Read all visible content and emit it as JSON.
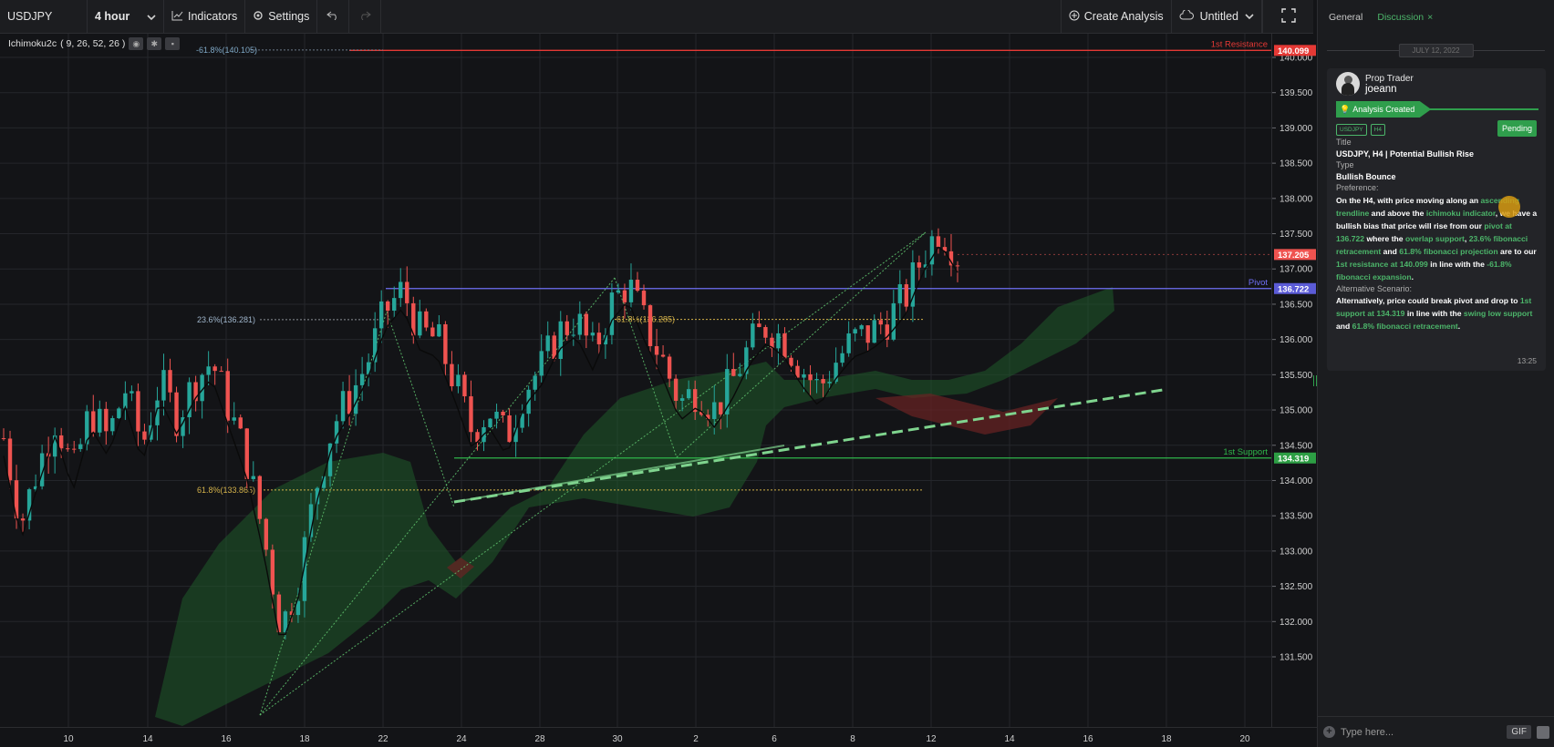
{
  "toolbar": {
    "symbol": "USDJPY",
    "interval": "4 hour",
    "indicators_label": "Indicators",
    "settings_label": "Settings",
    "create_analysis_label": "Create Analysis",
    "layout_name": "Untitled"
  },
  "indicator_legend": {
    "name": "Ichimoku2c",
    "params": "( 9, 26, 52, 26 )"
  },
  "colors": {
    "background": "#131417",
    "up_candle": "#26a69a",
    "down_candle": "#ef5350",
    "resistance": "#e53935",
    "pivot": "#6f6ff5",
    "support": "#2fb54a",
    "fib": "#d4b24a",
    "accent": "#4cb56a"
  },
  "chart_labels": {
    "resistance_label": "1st Resistance",
    "resistance_value": "140.099",
    "pivot_label": "Pivot",
    "pivot_value": "136.722",
    "support_label": "1st Support",
    "support_value": "134.319",
    "current_price": "137.205",
    "fib_top": "-61.8%(140.105)",
    "fib_23": "23.6%(136.281)",
    "fib_61_right": "61.8%(136.285)",
    "fib_61_left": "61.8%(133.865)"
  },
  "chart_data": {
    "type": "candlestick",
    "y_ticks": [
      "140.000",
      "139.500",
      "139.000",
      "138.500",
      "138.000",
      "137.500",
      "137.000",
      "136.500",
      "136.000",
      "135.500",
      "135.000",
      "134.500",
      "134.000",
      "133.500",
      "133.000",
      "132.500",
      "132.000",
      "131.500"
    ],
    "x_ticks": [
      "10",
      "14",
      "16",
      "18",
      "22",
      "24",
      "28",
      "30",
      "2",
      "6",
      "8",
      "12",
      "14",
      "16",
      "18",
      "20"
    ],
    "ylim": [
      131.4,
      140.6
    ],
    "levels": [
      {
        "name": "1st Resistance",
        "value": 140.099
      },
      {
        "name": "Pivot",
        "value": 136.722
      },
      {
        "name": "1st Support",
        "value": 134.319
      }
    ],
    "close_path": [
      134.6,
      133.4,
      134.2,
      134.9,
      134.1,
      135.0,
      134.6,
      135.3,
      134.5,
      135.4,
      134.9,
      135.4,
      135.7,
      135.0,
      134.3,
      133.2,
      131.9,
      132.6,
      133.9,
      134.8,
      135.2,
      135.7,
      136.4,
      136.7,
      136.1,
      136.0,
      135.4,
      134.7,
      135.0,
      134.6,
      135.3,
      135.6,
      136.1,
      136.3,
      135.8,
      136.5,
      136.8,
      136.2,
      135.7,
      135.1,
      135.3,
      135.0,
      135.4,
      135.9,
      136.2,
      136.0,
      135.6,
      135.3,
      135.7,
      136.0,
      136.1,
      136.3,
      136.6,
      137.2,
      137.6,
      137.2
    ]
  },
  "panel": {
    "tab_general": "General",
    "tab_discussion": "Discussion",
    "tab_close": "×",
    "date": "JULY 12, 2022",
    "author_role": "Prop Trader",
    "author_name": "joeann",
    "status": "Analysis Created",
    "tag_symbol": "USDJPY",
    "tag_tf": "H4",
    "pending": "Pending",
    "title_label": "Title",
    "title_value": "USDJPY, H4 | Potential Bullish Rise",
    "type_label": "Type",
    "type_value": "Bullish Bounce",
    "preference_label": "Preference:",
    "pref_parts": [
      {
        "t": "On the H4, with price moving along an ",
        "g": false
      },
      {
        "t": "ascending trendline",
        "g": true
      },
      {
        "t": " and above the ",
        "g": false
      },
      {
        "t": "ichimoku indicator",
        "g": true
      },
      {
        "t": ", we have a bullish bias that price will rise from our ",
        "g": false
      },
      {
        "t": "pivot at 136.722",
        "g": true
      },
      {
        "t": " where the ",
        "g": false
      },
      {
        "t": "overlap support",
        "g": true
      },
      {
        "t": ", ",
        "g": false
      },
      {
        "t": "23.6% fibonacci retracement",
        "g": true
      },
      {
        "t": " and ",
        "g": false
      },
      {
        "t": "61.8% fibonacci projection",
        "g": true
      },
      {
        "t": " are to our ",
        "g": false
      },
      {
        "t": "1st resistance at 140.099",
        "g": true
      },
      {
        "t": " in line with the ",
        "g": false
      },
      {
        "t": "-61.8% fibonacci expansion",
        "g": true
      },
      {
        "t": ".",
        "g": false
      }
    ],
    "alt_label": "Alternative Scenario:",
    "alt_parts": [
      {
        "t": "Alternatively, price could break pivot and drop to ",
        "g": false
      },
      {
        "t": "1st support at 134.319",
        "g": true
      },
      {
        "t": " in line with the ",
        "g": false
      },
      {
        "t": "swing low support",
        "g": true
      },
      {
        "t": " and ",
        "g": false
      },
      {
        "t": "61.8% fibonacci retracement",
        "g": true
      },
      {
        "t": ".",
        "g": false
      }
    ],
    "time": "13:25",
    "input_placeholder": "Type here...",
    "gif_label": "GIF"
  }
}
